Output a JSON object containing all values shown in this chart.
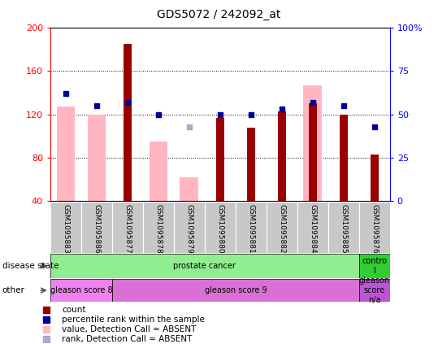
{
  "title": "GDS5072 / 242092_at",
  "samples": [
    "GSM1095883",
    "GSM1095886",
    "GSM1095877",
    "GSM1095878",
    "GSM1095879",
    "GSM1095880",
    "GSM1095881",
    "GSM1095882",
    "GSM1095884",
    "GSM1095885",
    "GSM1095876"
  ],
  "count_values": [
    null,
    null,
    185,
    null,
    null,
    117,
    108,
    123,
    130,
    120,
    83
  ],
  "pink_bar_values": [
    127,
    120,
    null,
    95,
    62,
    null,
    null,
    null,
    147,
    null,
    null
  ],
  "blue_dot_values_pct": [
    62,
    55,
    57,
    50,
    43,
    50,
    50,
    53,
    57,
    55,
    43
  ],
  "blue_dot_is_light": [
    false,
    false,
    false,
    false,
    true,
    false,
    false,
    false,
    false,
    false,
    false
  ],
  "ylim_left": [
    40,
    200
  ],
  "ylim_right": [
    0,
    100
  ],
  "yticks_left": [
    40,
    80,
    120,
    160,
    200
  ],
  "yticks_right": [
    0,
    25,
    50,
    75,
    100
  ],
  "ytick_labels_right": [
    "0",
    "25",
    "50",
    "75",
    "100%"
  ],
  "disease_state_groups": [
    {
      "label": "prostate cancer",
      "start": 0,
      "end": 9,
      "color": "#90EE90"
    },
    {
      "label": "contro\nl",
      "start": 10,
      "end": 10,
      "color": "#32CD32"
    }
  ],
  "other_groups": [
    {
      "label": "gleason score 8",
      "start": 0,
      "end": 1,
      "color": "#EE82EE"
    },
    {
      "label": "gleason score 9",
      "start": 2,
      "end": 9,
      "color": "#DA70D6"
    },
    {
      "label": "gleason\nscore\nn/a",
      "start": 10,
      "end": 10,
      "color": "#BA55D3"
    }
  ],
  "bar_width": 0.6,
  "dark_red": "#990000",
  "pink": "#FFB6C1",
  "blue": "#000099",
  "light_blue": "#AAAACC",
  "bg_color": "#C8C8C8",
  "fig_bg": "#FFFFFF"
}
